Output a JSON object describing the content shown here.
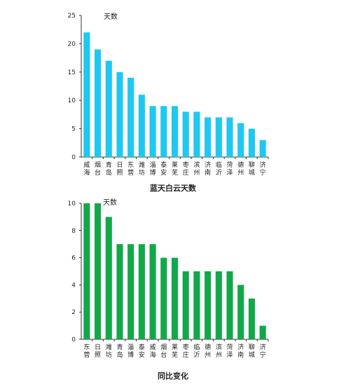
{
  "chart_data": [
    {
      "type": "bar",
      "title": "蓝天白云天数",
      "ylabel": "天数",
      "ylim": [
        0,
        25
      ],
      "yticks": [
        0,
        5,
        10,
        15,
        20,
        25
      ],
      "grid": false,
      "color": "#1ec8f0",
      "categories": [
        "威海",
        "烟台",
        "青岛",
        "日照",
        "东营",
        "潍坊",
        "淄博",
        "泰安",
        "莱芜",
        "枣庄",
        "滨州",
        "济南",
        "临沂",
        "菏泽",
        "德州",
        "聊城",
        "济宁"
      ],
      "values": [
        22,
        19,
        17,
        15,
        14,
        11,
        9,
        9,
        9,
        8,
        8,
        7,
        7,
        7,
        6,
        5,
        3
      ]
    },
    {
      "type": "bar",
      "title": "同比变化",
      "ylabel": "天数",
      "ylim": [
        0,
        10
      ],
      "yticks": [
        0,
        2,
        4,
        6,
        8,
        10
      ],
      "grid": false,
      "color": "#12a84a",
      "categories": [
        "东营",
        "日照",
        "潍坊",
        "青岛",
        "淄博",
        "泰安",
        "威海",
        "烟台",
        "莱芜",
        "枣庄",
        "临沂",
        "德州",
        "滨州",
        "菏泽",
        "济南",
        "聊城",
        "济宁"
      ],
      "values": [
        10,
        10,
        9,
        7,
        7,
        7,
        7,
        6,
        6,
        5,
        5,
        5,
        5,
        5,
        4,
        3,
        1
      ]
    }
  ]
}
